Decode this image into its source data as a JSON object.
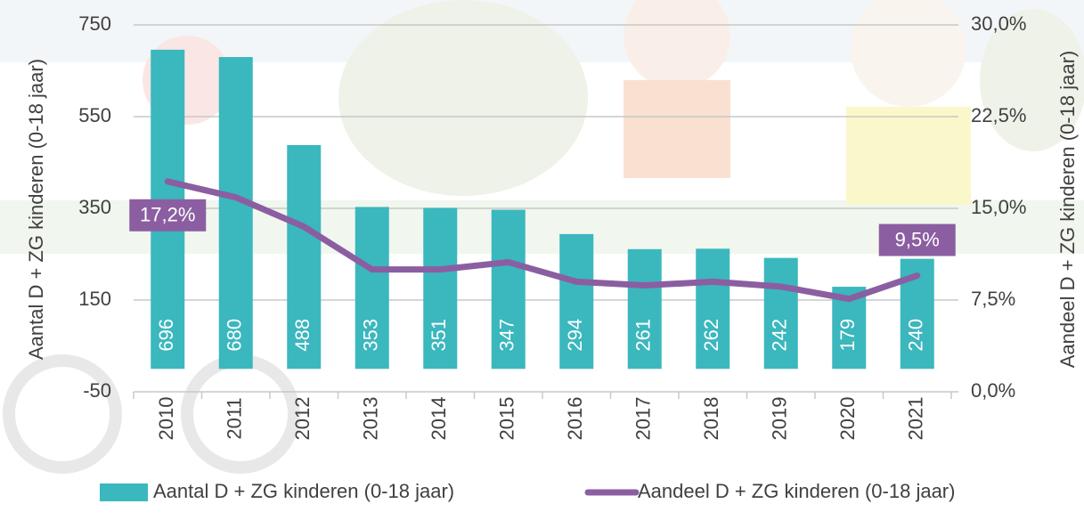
{
  "chart_data": {
    "type": "bar_line",
    "y_axis_label": "Aantal D + ZG kinderen (0-18 jaar)",
    "y2_axis_label": "Aandeel D + ZG kinderen (0-18 jaar)",
    "categories": [
      "2010",
      "2011",
      "2012",
      "2013",
      "2014",
      "2015",
      "2016",
      "2017",
      "2018",
      "2019",
      "2020",
      "2021"
    ],
    "series": [
      {
        "name": "Aantal D + ZG kinderen (0-18 jaar)",
        "type": "bar",
        "color": "#3bb7be",
        "values": [
          696,
          680,
          488,
          353,
          351,
          347,
          294,
          261,
          262,
          242,
          179,
          240
        ]
      },
      {
        "name": "Aandeel D + ZG kinderen (0-18 jaar)",
        "type": "line",
        "axis": "y2",
        "color": "#8b5ea1",
        "values": [
          17.2,
          15.9,
          13.5,
          10.0,
          10.0,
          10.6,
          9.0,
          8.7,
          9.0,
          8.6,
          7.6,
          9.5
        ],
        "value_labels": [
          "17,2%",
          null,
          null,
          null,
          null,
          null,
          null,
          null,
          null,
          null,
          null,
          "9,5%"
        ]
      }
    ],
    "ylim": [
      -50,
      750
    ],
    "yticks": [
      -50,
      150,
      350,
      550,
      750
    ],
    "y2lim": [
      0,
      30
    ],
    "y2ticks": [
      {
        "value": 0,
        "label": "0,0%"
      },
      {
        "value": 7.5,
        "label": "7,5%"
      },
      {
        "value": 15,
        "label": "15,0%"
      },
      {
        "value": 22.5,
        "label": "22,5%"
      },
      {
        "value": 30,
        "label": "30,0%"
      }
    ],
    "grid": true,
    "legend": "bottom"
  }
}
